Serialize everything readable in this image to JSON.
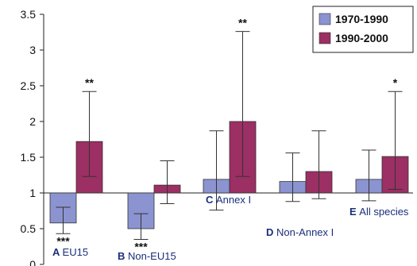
{
  "chart_data": {
    "type": "bar",
    "title": "",
    "xlabel": "",
    "ylabel": "",
    "ylim": [
      0,
      3.5
    ],
    "yticks": [
      "0",
      "0.5",
      "1",
      "1.5",
      "2",
      "2.5",
      "3",
      "3.5"
    ],
    "baseline": 1,
    "grid": false,
    "legend_position": "top-right",
    "categories": [
      {
        "letter": "A",
        "name": "EU15"
      },
      {
        "letter": "B",
        "name": "Non-EU15"
      },
      {
        "letter": "C",
        "name": "Annex I"
      },
      {
        "letter": "D",
        "name": "Non-Annex I"
      },
      {
        "letter": "E",
        "name": "All species"
      }
    ],
    "series": [
      {
        "name": "1970-1990",
        "color": "#8b93d0",
        "values": [
          0.58,
          0.5,
          1.19,
          1.16,
          1.19
        ],
        "err_low": [
          0.43,
          0.35,
          0.76,
          0.88,
          0.89
        ],
        "err_high": [
          0.8,
          0.71,
          1.87,
          1.56,
          1.6
        ],
        "significance": [
          "***",
          "***",
          "",
          "",
          ""
        ]
      },
      {
        "name": "1990-2000",
        "color": "#9c2f63",
        "values": [
          1.72,
          1.11,
          2.0,
          1.3,
          1.51
        ],
        "err_low": [
          1.23,
          0.85,
          1.23,
          0.92,
          1.05
        ],
        "err_high": [
          2.42,
          1.45,
          3.26,
          1.87,
          2.42
        ],
        "significance": [
          "**",
          "",
          "**",
          "",
          "*"
        ]
      }
    ]
  }
}
